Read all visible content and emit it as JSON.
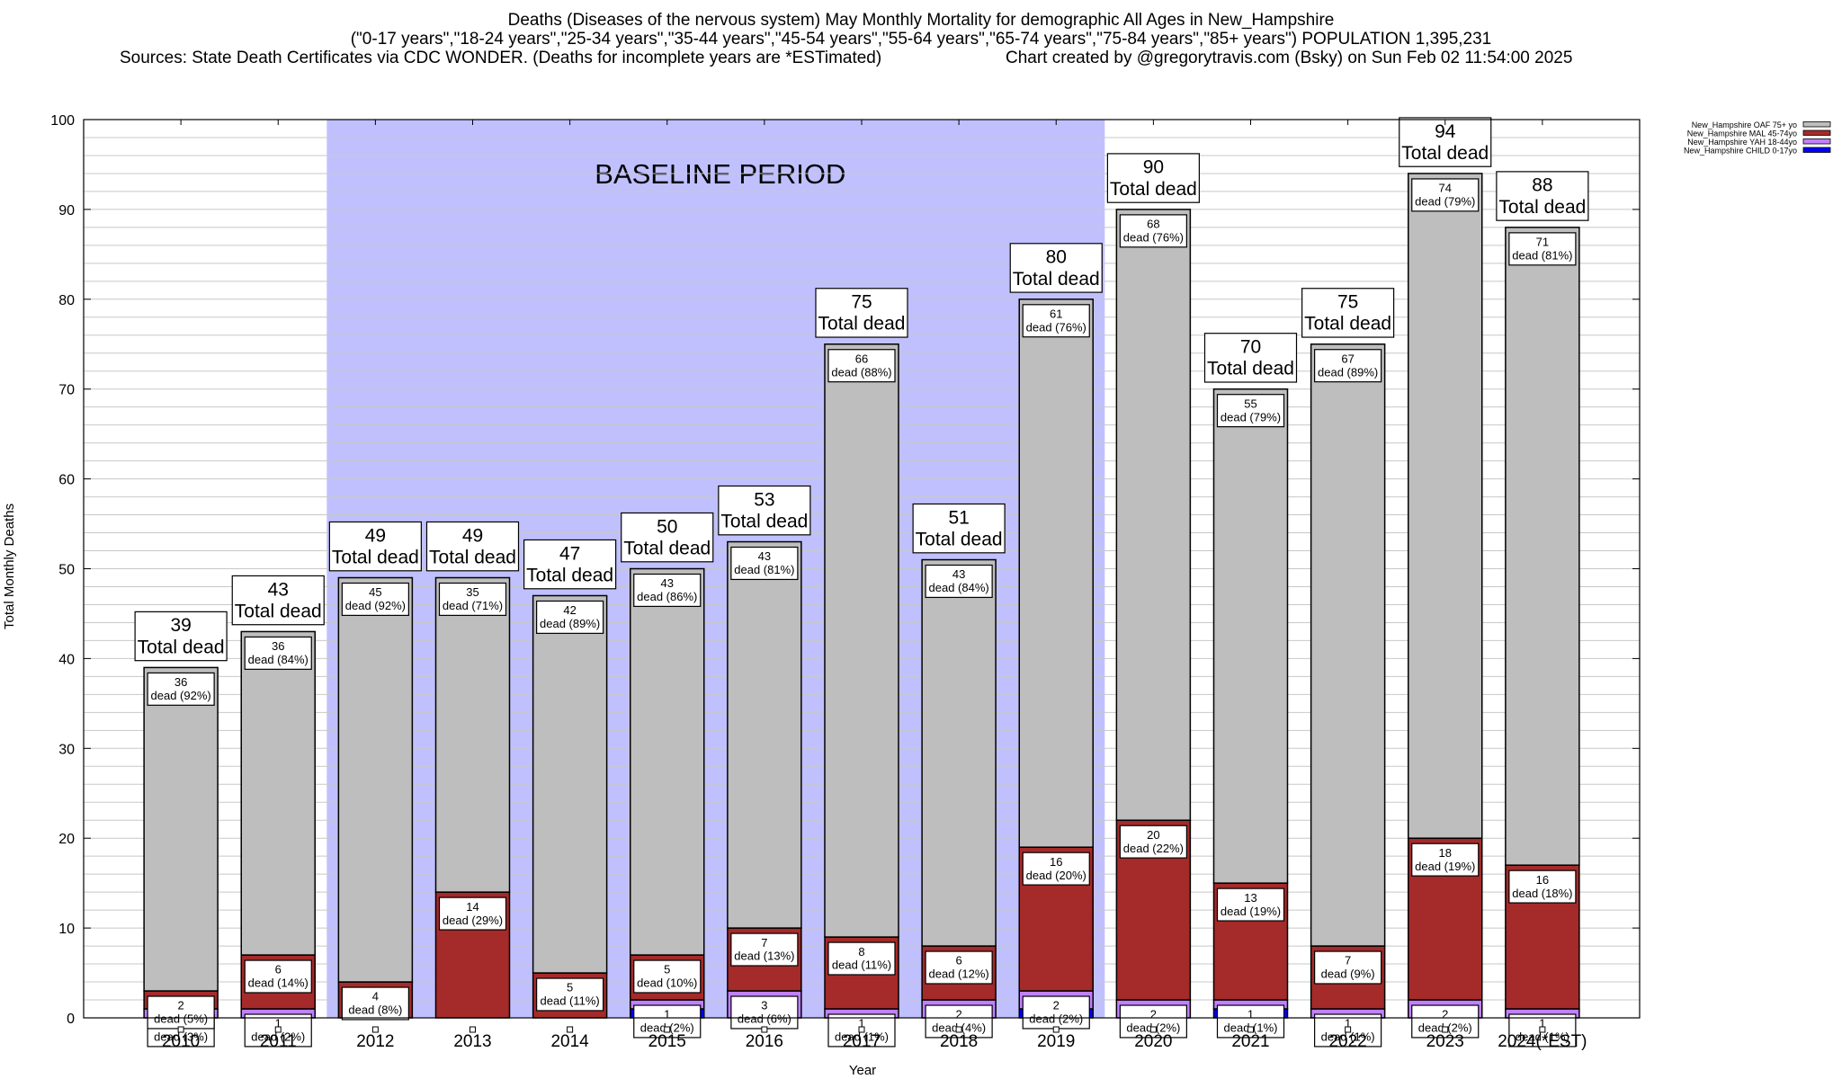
{
  "header": {
    "title": "Deaths (Diseases of the nervous system) May Monthly Mortality for demographic All Ages in New_Hampshire",
    "subtitle": "(\"0-17 years\",\"18-24 years\",\"25-34 years\",\"35-44 years\",\"45-54 years\",\"55-64 years\",\"65-74 years\",\"75-84 years\",\"85+ years\") POPULATION 1,395,231",
    "sources": "Sources: State Death Certificates via CDC WONDER. (Deaths for incomplete years are *ESTimated)",
    "credit": "Chart created by @gregorytravis.com (Bsky) on Sun Feb 02 11:54:00 2025"
  },
  "colors": {
    "oaf": "#bebebe",
    "mal": "#a52a2a",
    "yah": "#c080ff",
    "child": "#0000ff",
    "baseline": "#c0c0ff",
    "grid": "#c8c8c8"
  },
  "chart_data": {
    "type": "bar",
    "stacked": true,
    "title": "Deaths (Diseases of the nervous system) May Monthly Mortality for demographic All Ages in New_Hampshire",
    "xlabel": "Year",
    "ylabel": "Total Monthly Deaths",
    "ylim": [
      0,
      100
    ],
    "yticks": [
      0,
      10,
      20,
      30,
      40,
      50,
      60,
      70,
      80,
      90,
      100
    ],
    "grid": true,
    "legend_position": "top-right",
    "annotation": "BASELINE PERIOD",
    "baseline_range": [
      "2012",
      "2019"
    ],
    "total_suffix": "Total dead",
    "categories": [
      "2010",
      "2011",
      "2012",
      "2013",
      "2014",
      "2015",
      "2016",
      "2017",
      "2018",
      "2019",
      "2020",
      "2021",
      "2022",
      "2023",
      "2024(*EST)"
    ],
    "totals": [
      39,
      43,
      49,
      49,
      47,
      50,
      53,
      75,
      51,
      80,
      90,
      70,
      75,
      94,
      88
    ],
    "series": [
      {
        "key": "child",
        "name": "New_Hampshire CHILD 0-17yo",
        "values": [
          0,
          0,
          0,
          0,
          0,
          1,
          0,
          0,
          0,
          1,
          0,
          1,
          0,
          0,
          0
        ],
        "labels": [
          "",
          "",
          "",
          "",
          "",
          "",
          "",
          "",
          "",
          "",
          "",
          "",
          "",
          "",
          ""
        ]
      },
      {
        "key": "yah",
        "name": "New_Hampshire YAH 18-44yo",
        "values": [
          1,
          1,
          0,
          0,
          0,
          1,
          3,
          1,
          2,
          2,
          2,
          1,
          1,
          2,
          1
        ],
        "labels": [
          "1\ndead (3%)",
          "1\ndead (2%)",
          "",
          "",
          "",
          "1\ndead (2%)",
          "3\ndead (6%)",
          "1\ndead (1%)",
          "2\ndead (4%)",
          "2\ndead (2%)",
          "2\ndead (2%)",
          "1\ndead (1%)",
          "1\ndead (1%)",
          "2\ndead (2%)",
          "1\ndead (1%)"
        ]
      },
      {
        "key": "mal",
        "name": "New_Hampshire MAL 45-74yo",
        "values": [
          2,
          6,
          4,
          14,
          5,
          5,
          7,
          8,
          6,
          16,
          20,
          13,
          7,
          18,
          16
        ],
        "labels": [
          "2\ndead (5%)",
          "6\ndead (14%)",
          "4\ndead (8%)",
          "14\ndead (29%)",
          "5\ndead (11%)",
          "5\ndead (10%)",
          "7\ndead (13%)",
          "8\ndead (11%)",
          "6\ndead (12%)",
          "16\ndead (20%)",
          "20\ndead (22%)",
          "13\ndead (19%)",
          "7\ndead (9%)",
          "18\ndead (19%)",
          "16\ndead (18%)"
        ]
      },
      {
        "key": "oaf",
        "name": "New_Hampshire OAF 75+ yo",
        "values": [
          36,
          36,
          45,
          35,
          42,
          43,
          43,
          66,
          43,
          61,
          68,
          55,
          67,
          74,
          71
        ],
        "labels": [
          "36\ndead (92%)",
          "36\ndead (84%)",
          "45\ndead (92%)",
          "35\ndead (71%)",
          "42\ndead (89%)",
          "43\ndead (86%)",
          "43\ndead (81%)",
          "66\ndead (88%)",
          "43\ndead (84%)",
          "61\ndead (76%)",
          "68\ndead (76%)",
          "55\ndead (79%)",
          "67\ndead (89%)",
          "74\ndead (79%)",
          "71\ndead (81%)"
        ]
      }
    ],
    "legend": [
      "New_Hampshire OAF 75+ yo",
      "New_Hampshire MAL 45-74yo",
      "New_Hampshire YAH 18-44yo",
      "New_Hampshire CHILD 0-17yo"
    ]
  }
}
